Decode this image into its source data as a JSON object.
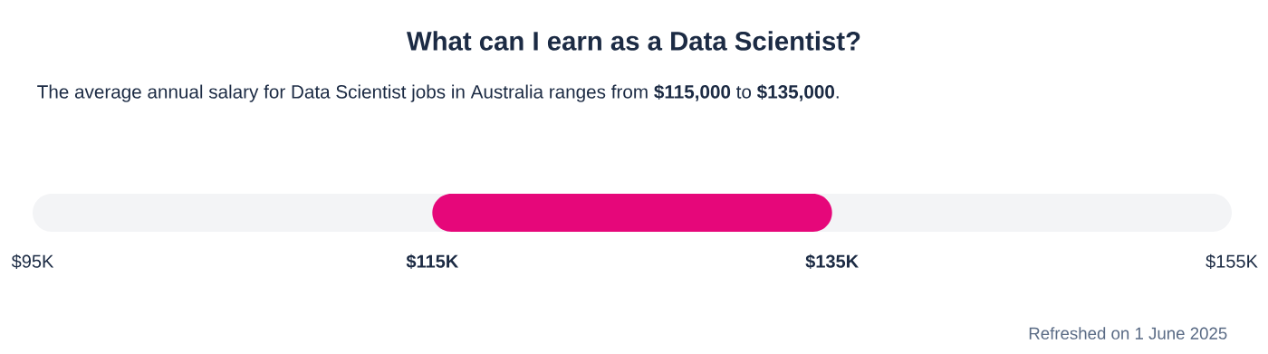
{
  "chart_data": {
    "type": "bar",
    "orientation": "horizontal",
    "title": "What can I earn as a Data Scientist?",
    "subtitle": "The average annual salary for Data Scientist jobs in Australia ranges from **$115,000** to **$135,000**.",
    "annotations": [
      "Refreshed on 1 June 2025"
    ],
    "categories": [
      null
    ],
    "base": [
      115000
    ],
    "values": [
      20000
    ],
    "color": "#e6077a",
    "xlim": [
      95000,
      155000
    ],
    "xticks": [
      {
        "value": 95000,
        "label": "$95K"
      },
      {
        "value": 115000,
        "label": "$115K"
      },
      {
        "value": 135000,
        "label": "$135K"
      },
      {
        "value": 155000,
        "label": "$155K"
      }
    ],
    "tick_labels": "x"
  }
}
